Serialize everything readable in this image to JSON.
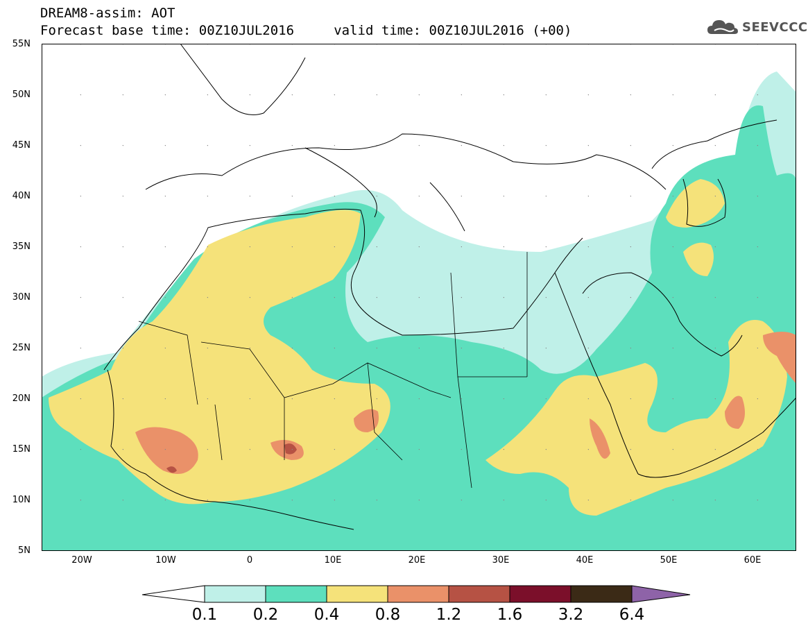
{
  "header": {
    "title_line1": "DREAM8-assim: AOT",
    "title_line2": "Forecast base time: 00Z10JUL2016     valid time: 00Z10JUL2016 (+00)",
    "logo_text": "SEEVCCC"
  },
  "map": {
    "latitude_labels": [
      "55N",
      "50N",
      "45N",
      "40N",
      "35N",
      "30N",
      "25N",
      "20N",
      "15N",
      "10N",
      "5N"
    ],
    "longitude_labels": [
      "20W",
      "10W",
      "0",
      "10E",
      "20E",
      "30E",
      "40E",
      "50E",
      "60E"
    ],
    "extent": {
      "lon_min": -25,
      "lon_max": 65,
      "lat_min": 5,
      "lat_max": 55
    },
    "variable": "AOT"
  },
  "legend": {
    "thresholds": [
      "0.1",
      "0.2",
      "0.4",
      "0.8",
      "1.2",
      "1.6",
      "3.2",
      "6.4"
    ],
    "colors": [
      "#ffffff",
      "#bff0e8",
      "#5ddfbd",
      "#f5e27a",
      "#ea9169",
      "#b65244",
      "#7b0f2a",
      "#3b2a16",
      "#8e63a8"
    ]
  },
  "icons": {
    "logo": "cloud-icon"
  }
}
